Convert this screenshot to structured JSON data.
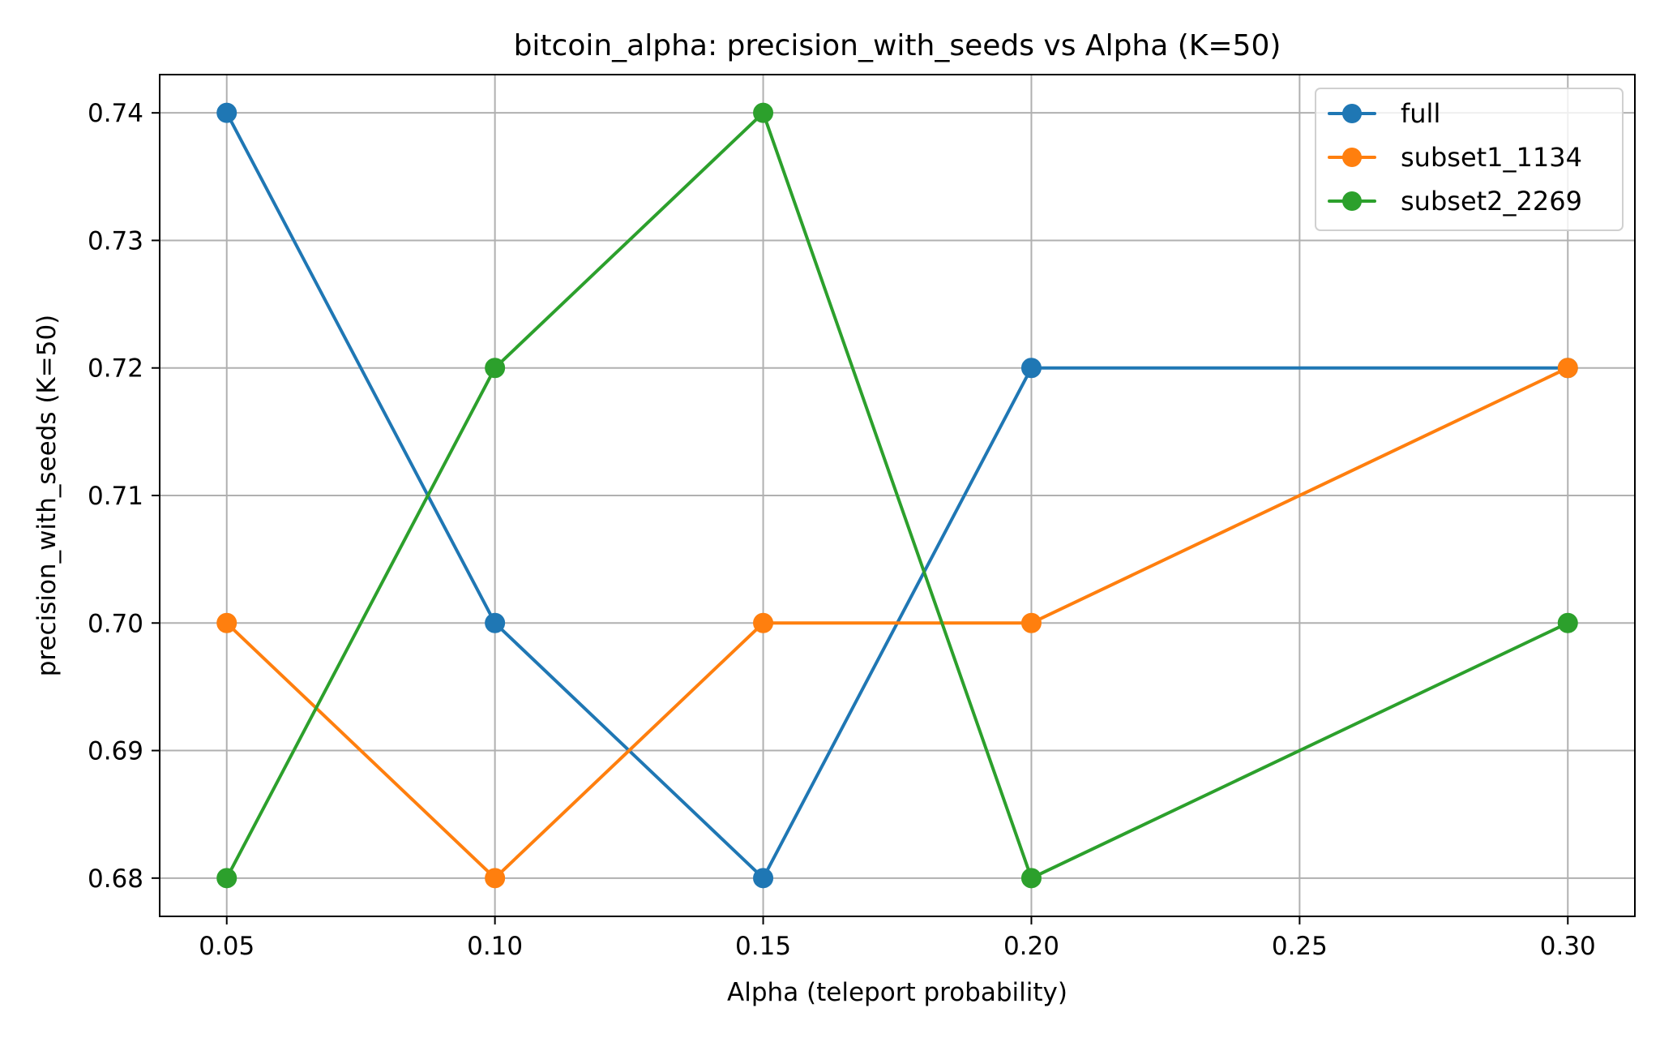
{
  "chart_data": {
    "type": "line",
    "title": "bitcoin_alpha: precision_with_seeds vs Alpha (K=50)",
    "xlabel": "Alpha (teleport probability)",
    "ylabel": "precision_with_seeds (K=50)",
    "x": [
      0.05,
      0.1,
      0.15,
      0.2,
      0.3
    ],
    "xlim": [
      0.0375,
      0.3125
    ],
    "ylim": [
      0.677,
      0.743
    ],
    "xticks": [
      "0.05",
      "0.10",
      "0.15",
      "0.20",
      "0.25",
      "0.30"
    ],
    "yticks": [
      "0.68",
      "0.69",
      "0.70",
      "0.71",
      "0.72",
      "0.73",
      "0.74"
    ],
    "grid": true,
    "legend_position": "top-right",
    "series": [
      {
        "name": "full",
        "color": "#1f77b4",
        "values": [
          0.74,
          0.7,
          0.68,
          0.72,
          0.72
        ]
      },
      {
        "name": "subset1_1134",
        "color": "#ff7f0e",
        "values": [
          0.7,
          0.68,
          0.7,
          0.7,
          0.72
        ]
      },
      {
        "name": "subset2_2269",
        "color": "#2ca02c",
        "values": [
          0.68,
          0.72,
          0.74,
          0.68,
          0.7
        ]
      }
    ]
  }
}
